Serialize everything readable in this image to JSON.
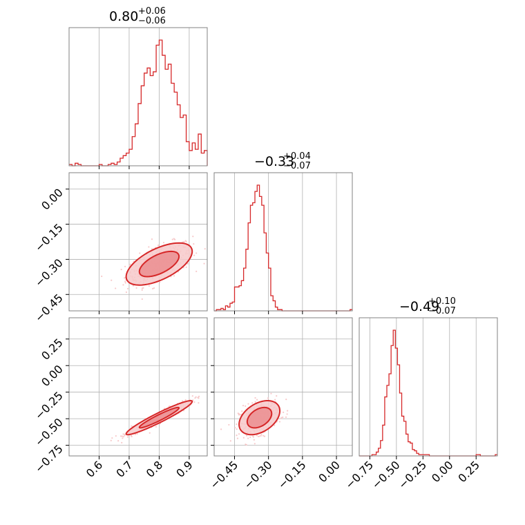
{
  "figure": {
    "accent_color": "#d62728",
    "fill_color_light": "#f7c9ca",
    "fill_color_mid": "#eb8e90",
    "grid_color": "#b0b0b0",
    "frame_color": "#808080"
  },
  "chart_data": [
    {
      "type": "histogram",
      "panel": "p1-marginal",
      "title_main": "0.80",
      "title_sup": "+0.06",
      "title_sub": "−0.06",
      "x_range": [
        0.5,
        0.96
      ],
      "x_grid": [
        0.6,
        0.7,
        0.8,
        0.9
      ],
      "bin_edges_start": 0.5,
      "bin_width": 0.01,
      "counts": [
        1,
        0,
        2,
        1,
        0,
        0,
        0,
        0,
        0,
        0,
        1,
        0,
        0,
        1,
        2,
        1,
        3,
        6,
        8,
        10,
        13,
        23,
        33,
        49,
        63,
        73,
        77,
        71,
        74,
        95,
        99,
        87,
        76,
        80,
        65,
        58,
        48,
        38,
        40,
        19,
        12,
        18,
        13,
        25,
        10,
        12,
        6,
        0
      ]
    },
    {
      "type": "histogram",
      "panel": "p2-marginal",
      "title_main": "−0.33",
      "title_sup": "+0.04",
      "title_sub": "−0.07",
      "x_range": [
        -0.54,
        0.07
      ],
      "x_grid": [
        -0.45,
        -0.3,
        -0.15,
        0.0
      ],
      "bin_edges_start": -0.54,
      "bin_width": 0.01,
      "counts": [
        0,
        1,
        1,
        2,
        1,
        4,
        3,
        6,
        7,
        19,
        19,
        20,
        24,
        34,
        49,
        70,
        84,
        86,
        95,
        100,
        91,
        84,
        62,
        46,
        34,
        12,
        8,
        3,
        1,
        1,
        0,
        0,
        0,
        0,
        0,
        0,
        0,
        0,
        0,
        0,
        0,
        0,
        0,
        0,
        0,
        0,
        0,
        0,
        0,
        0,
        0,
        0,
        0,
        0,
        0,
        0,
        0,
        0,
        0,
        0,
        1
      ]
    },
    {
      "type": "histogram",
      "panel": "p3-marginal",
      "title_main": "−0.49",
      "title_sup": "+0.10",
      "title_sub": "−0.07",
      "x_range": [
        -0.85,
        0.45
      ],
      "x_grid": [
        -0.75,
        -0.5,
        -0.25,
        0.0,
        0.25
      ],
      "x_ticklabels": [
        "−0.75",
        "−0.50",
        "−0.25",
        "0.00",
        "0.25"
      ],
      "bin_edges_start": -0.85,
      "bin_width": 0.02,
      "counts": [
        0,
        0,
        0,
        0,
        0,
        0,
        1,
        1,
        3,
        6,
        12,
        24,
        46,
        55,
        64,
        86,
        98,
        84,
        71,
        49,
        31,
        27,
        17,
        11,
        10,
        5,
        4,
        2,
        1,
        1,
        1,
        1,
        1,
        0,
        0,
        0,
        0,
        0,
        0,
        0,
        0,
        0,
        0,
        0,
        0,
        0,
        0,
        0,
        0,
        0,
        0,
        0,
        0,
        0,
        0,
        1,
        1,
        0,
        0,
        0,
        0,
        0,
        0,
        0,
        1
      ]
    },
    {
      "type": "scatter-contour",
      "panel": "p1-vs-p2",
      "x_range": [
        0.5,
        0.96
      ],
      "y_range": [
        -0.52,
        0.07
      ],
      "x_grid": [
        0.6,
        0.7,
        0.8,
        0.9
      ],
      "y_grid": [
        -0.45,
        -0.3,
        -0.15,
        0.0
      ],
      "y_ticklabels": [
        "−0.45",
        "−0.30",
        "−0.15",
        "0.00"
      ],
      "mean": [
        0.8,
        -0.32
      ],
      "std": [
        0.055,
        0.045
      ],
      "corr": 0.6,
      "n_points": 420
    },
    {
      "type": "scatter-contour",
      "panel": "p1-vs-p3",
      "x_range": [
        0.5,
        0.96
      ],
      "y_range": [
        -0.85,
        0.45
      ],
      "x_grid": [
        0.6,
        0.7,
        0.8,
        0.9
      ],
      "x_ticklabels": [
        "0.6",
        "0.7",
        "0.8",
        "0.9"
      ],
      "y_grid": [
        -0.75,
        -0.5,
        -0.25,
        0.0,
        0.25
      ],
      "y_ticklabels": [
        "−0.75",
        "−0.50",
        "−0.25",
        "0.00",
        "0.25"
      ],
      "mean": [
        0.8,
        -0.49
      ],
      "std": [
        0.055,
        0.08
      ],
      "corr": 0.95,
      "n_points": 420
    },
    {
      "type": "scatter-contour",
      "panel": "p2-vs-p3",
      "x_range": [
        -0.54,
        0.07
      ],
      "y_range": [
        -0.85,
        0.45
      ],
      "x_grid": [
        -0.45,
        -0.3,
        -0.15,
        0.0
      ],
      "x_ticklabels": [
        "−0.45",
        "−0.30",
        "−0.15",
        "0.00"
      ],
      "y_grid": [
        -0.75,
        -0.5,
        -0.25,
        0.0,
        0.25
      ],
      "mean": [
        -0.34,
        -0.49
      ],
      "std": [
        0.045,
        0.08
      ],
      "corr": 0.4,
      "n_points": 420
    }
  ]
}
